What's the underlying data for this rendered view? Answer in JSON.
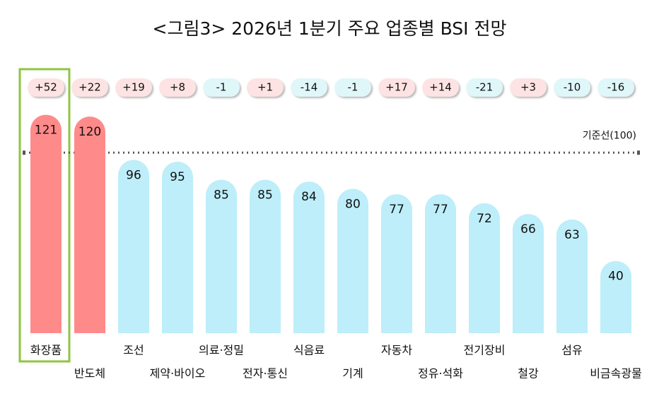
{
  "chart_data": {
    "type": "bar",
    "title": "<그림3> 2026년 1분기 주요 업종별 BSI 전망",
    "categories": [
      "화장품",
      "반도체",
      "조선",
      "제약·바이오",
      "의료·정밀",
      "전자·통신",
      "식음료",
      "기계",
      "자동차",
      "정유·석화",
      "전기장비",
      "철강",
      "섬유",
      "비금속광물"
    ],
    "values": [
      121,
      120,
      96,
      95,
      85,
      85,
      84,
      80,
      77,
      77,
      72,
      66,
      63,
      40
    ],
    "colors": [
      "#ff8a8a",
      "#ff8a8a",
      "#bdeefa",
      "#bdeefa",
      "#bdeefa",
      "#bdeefa",
      "#bdeefa",
      "#bdeefa",
      "#bdeefa",
      "#bdeefa",
      "#bdeefa",
      "#bdeefa",
      "#bdeefa",
      "#bdeefa"
    ],
    "changes": {
      "values": [
        52,
        22,
        19,
        8,
        -1,
        1,
        -14,
        -1,
        17,
        14,
        -21,
        3,
        -10,
        -16
      ],
      "value_labels": [
        "+52",
        "+22",
        "+19",
        "+8",
        "-1",
        "+1",
        "-14",
        "-1",
        "+17",
        "+14",
        "-21",
        "+3",
        "-10",
        "-16"
      ],
      "positive_color": "#fde3e3",
      "negative_color": "#e0f7fa"
    },
    "reference": {
      "value": 100,
      "label": "기준선(100)"
    },
    "ylim": [
      0,
      140
    ]
  }
}
